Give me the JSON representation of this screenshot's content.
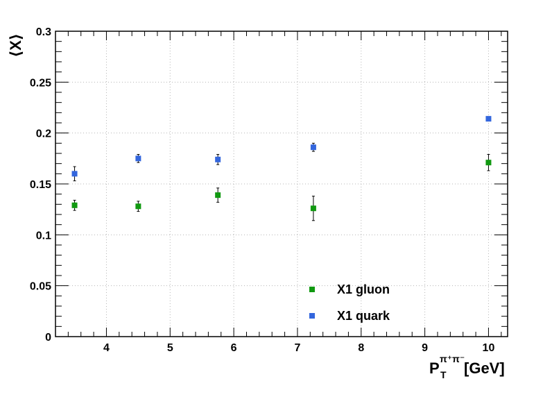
{
  "chart_data": {
    "type": "scatter",
    "title": "",
    "xlabel": "P",
    "xlabel_sub": "T",
    "xlabel_sup": "π⁺π⁻",
    "xlabel_unit": "[GeV]",
    "ylabel": "⟨X⟩",
    "xlim": [
      3.2,
      10.3
    ],
    "ylim": [
      0,
      0.3
    ],
    "grid": true,
    "x_ticks": [
      4,
      5,
      6,
      7,
      8,
      9,
      10
    ],
    "x_tick_labels": [
      "4",
      "5",
      "6",
      "7",
      "8",
      "9",
      "10"
    ],
    "y_ticks": [
      0,
      0.05,
      0.1,
      0.15,
      0.2,
      0.25,
      0.3
    ],
    "y_tick_labels": [
      "0",
      "0.05",
      "0.1",
      "0.15",
      "0.2",
      "0.25",
      "0.3"
    ],
    "legend_position": "bottom-right",
    "series": [
      {
        "name": "X1 gluon",
        "color": "#119911",
        "x": [
          3.5,
          4.5,
          5.75,
          7.25,
          10.0
        ],
        "y": [
          0.129,
          0.128,
          0.139,
          0.126,
          0.171
        ],
        "yerr": [
          0.005,
          0.005,
          0.007,
          0.012,
          0.008
        ]
      },
      {
        "name": "X1 quark",
        "color": "#3366dd",
        "x": [
          3.5,
          4.5,
          5.75,
          7.25,
          10.0
        ],
        "y": [
          0.16,
          0.175,
          0.174,
          0.186,
          0.214
        ],
        "yerr": [
          0.007,
          0.004,
          0.005,
          0.004,
          0.002
        ]
      }
    ]
  }
}
